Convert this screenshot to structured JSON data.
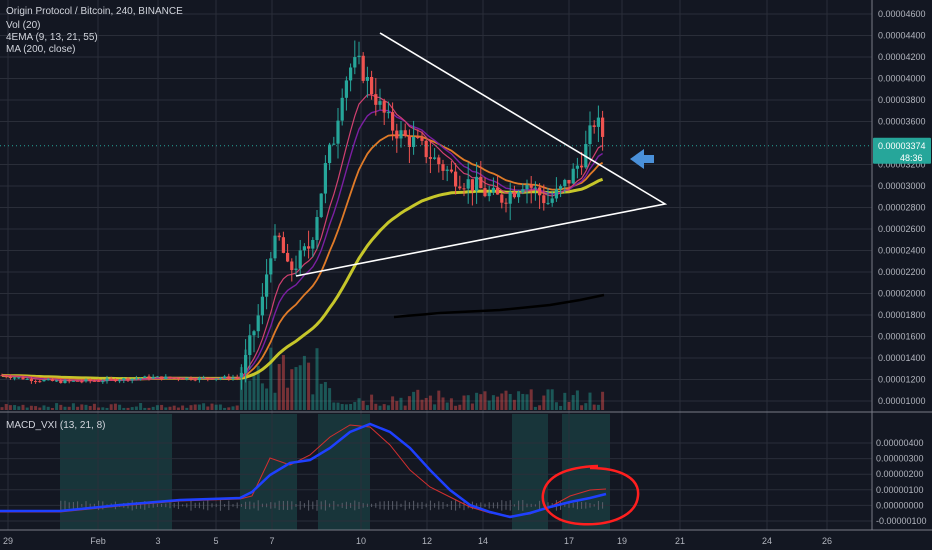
{
  "legend": {
    "symbol": "Origin Protocol / Bitcoin, 240, BINANCE",
    "vol": "Vol (20)",
    "ema": "4EMA (9, 13, 21, 55)",
    "ma": "MA (200, close)",
    "macd": "MACD_VXI (13, 21, 8)"
  },
  "colors": {
    "background": "#131722",
    "up": "#26a69a",
    "down": "#ef5350",
    "ma200": "#000000",
    "ema55": "#c6c62a",
    "ema21": "#e07b28",
    "ema13": "#7b1fa2",
    "ema9": "#d04070",
    "macd": "#1e40ff",
    "signal": "#d32f2f",
    "annotation": "#ffffff",
    "arrow": "#4a90d9",
    "circle": "#ff1f1f",
    "price_tag": "#26a69a"
  },
  "price_axis": {
    "ticks": [
      "0.00004600",
      "0.00004400",
      "0.00004200",
      "0.00004000",
      "0.00003800",
      "0.00003600",
      "0.00003200",
      "0.00003000",
      "0.00002800",
      "0.00002600",
      "0.00002400",
      "0.00002200",
      "0.00002000",
      "0.00001800",
      "0.00001600",
      "0.00001400",
      "0.00001200",
      "0.00001000"
    ],
    "current_price": "0.00003374",
    "countdown": "48:36"
  },
  "macd_axis": {
    "ticks": [
      "0.00000400",
      "0.00000300",
      "0.00000200",
      "0.00000100",
      "0.00000000",
      "-0.00000100"
    ]
  },
  "time_axis": {
    "ticks": [
      "29",
      "Feb",
      "3",
      "5",
      "7",
      "10",
      "12",
      "14",
      "17",
      "19",
      "21",
      "24",
      "26"
    ]
  },
  "chart_data": {
    "type": "candlestick",
    "pair": "Origin Protocol / Bitcoin",
    "interval": "240",
    "exchange": "BINANCE",
    "ylim": [
      9.6e-06,
      4.68e-05
    ],
    "macd_ylim": [
      -1.3e-06,
      4.1e-06
    ],
    "key_points": [
      {
        "date": "Jan 29",
        "price": 1.24e-05
      },
      {
        "date": "Feb 5",
        "price": 1.25e-05
      },
      {
        "date": "Feb 6",
        "price": 1.8e-05
      },
      {
        "date": "Feb 7",
        "price": 2.4e-05
      },
      {
        "date": "Feb 8",
        "price": 3.4e-05
      },
      {
        "date": "Feb 9",
        "price": 4e-05
      },
      {
        "date": "Feb 10",
        "price": 4.2e-05
      },
      {
        "date": "Feb 11",
        "price": 3.6e-05
      },
      {
        "date": "Feb 12",
        "price": 3.3e-05
      },
      {
        "date": "Feb 13",
        "price": 3.1e-05
      },
      {
        "date": "Feb 14",
        "price": 3e-05
      },
      {
        "date": "Feb 15",
        "price": 2.9e-05
      },
      {
        "date": "Feb 16",
        "price": 3e-05
      },
      {
        "date": "Feb 17",
        "price": 3.15e-05
      },
      {
        "date": "Feb 18",
        "price": 3.5e-05
      },
      {
        "date": "Feb 18",
        "price": 3.37e-05
      }
    ]
  }
}
